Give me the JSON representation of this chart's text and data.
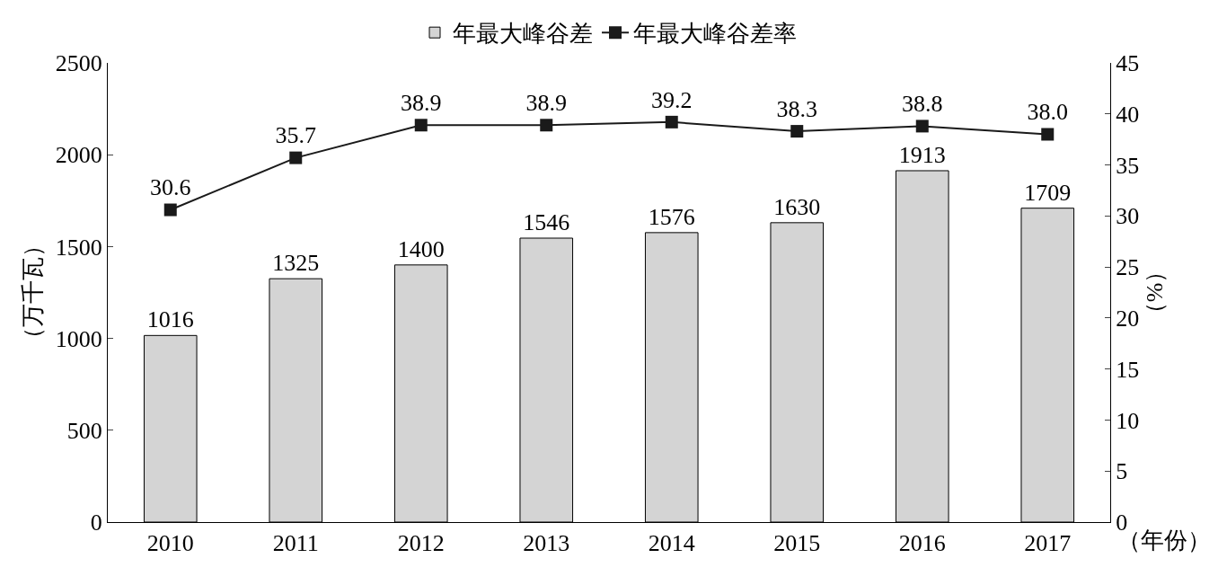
{
  "chart_data": {
    "type": "bar",
    "categories": [
      "2010",
      "2011",
      "2012",
      "2013",
      "2014",
      "2015",
      "2016",
      "2017"
    ],
    "xlabel": "（年份）",
    "ylabel": "（万千瓦）",
    "y2label": "（%）",
    "series": [
      {
        "name": "年最大峰谷差",
        "color": "#d4d4d4",
        "values": [
          1016,
          1325,
          1400,
          1546,
          1576,
          1630,
          1913,
          1709
        ],
        "value_labels": [
          "1016",
          "1325",
          "1400",
          "1546",
          "1576",
          "1630",
          "1913",
          "1709"
        ]
      },
      {
        "name": "年最大峰谷差率",
        "type": "line",
        "axis": "y2",
        "color": "#1a1a1a",
        "marker": "square",
        "line_style": "solid",
        "values": [
          30.6,
          35.7,
          38.9,
          38.9,
          39.2,
          38.3,
          38.8,
          38.0
        ],
        "value_labels": [
          "30.6",
          "35.7",
          "38.9",
          "38.9",
          "39.2",
          "38.3",
          "38.8",
          "38.0"
        ]
      }
    ],
    "ylim": [
      0,
      2500
    ],
    "yticks": [
      0,
      500,
      1000,
      1500,
      2000,
      2500
    ],
    "y2lim": [
      0,
      45
    ],
    "y2ticks": [
      0,
      5,
      10,
      15,
      20,
      25,
      30,
      35,
      40,
      45
    ],
    "grid": false,
    "legend": "top"
  }
}
